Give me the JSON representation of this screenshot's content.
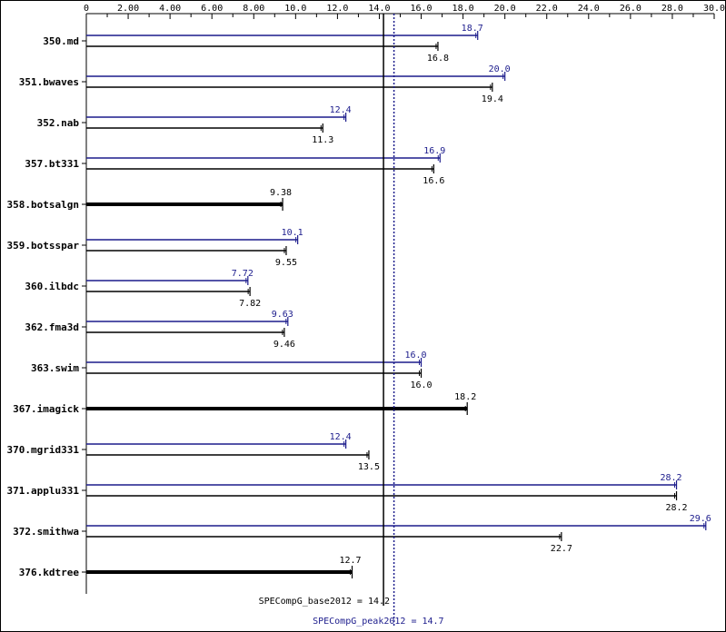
{
  "chart_data": {
    "type": "bar",
    "orientation": "horizontal",
    "xlim": [
      0,
      30.0
    ],
    "x_ticks": [
      "0",
      "2.00",
      "4.00",
      "6.00",
      "8.00",
      "10.0",
      "12.0",
      "14.0",
      "16.0",
      "18.0",
      "20.0",
      "22.0",
      "24.0",
      "26.0",
      "28.0",
      "30.0"
    ],
    "categories": [
      "350.md",
      "351.bwaves",
      "352.nab",
      "357.bt331",
      "358.botsalgn",
      "359.botsspar",
      "360.ilbdc",
      "362.fma3d",
      "363.swim",
      "367.imagick",
      "370.mgrid331",
      "371.applu331",
      "372.smithwa",
      "376.kdtree"
    ],
    "series": [
      {
        "name": "peak",
        "values": [
          18.7,
          20.0,
          12.4,
          16.9,
          null,
          10.1,
          7.72,
          9.63,
          16.0,
          null,
          12.4,
          28.2,
          29.6,
          null
        ],
        "labels": [
          "18.7",
          "20.0",
          "12.4",
          "16.9",
          "",
          "10.1",
          "7.72",
          "9.63",
          "16.0",
          "",
          "12.4",
          "28.2",
          "29.6",
          ""
        ]
      },
      {
        "name": "base",
        "values": [
          16.8,
          19.4,
          11.3,
          16.6,
          9.38,
          9.55,
          7.82,
          9.46,
          16.0,
          18.2,
          13.5,
          28.2,
          22.7,
          12.7
        ],
        "labels": [
          "16.8",
          "19.4",
          "11.3",
          "16.6",
          "9.38",
          "9.55",
          "7.82",
          "9.46",
          "16.0",
          "18.2",
          "13.5",
          "28.2",
          "22.7",
          "12.7"
        ]
      }
    ],
    "reference_lines": [
      {
        "label": "SPECompG_base2012 = 14.2",
        "value": 14.2,
        "style": "solid"
      },
      {
        "label": "SPECompG_peak2012 = 14.7",
        "value": 14.7,
        "style": "dotted"
      }
    ],
    "colors": {
      "base": "#000000",
      "peak": "#1c1c8c"
    },
    "grid": false,
    "legend": "none"
  }
}
